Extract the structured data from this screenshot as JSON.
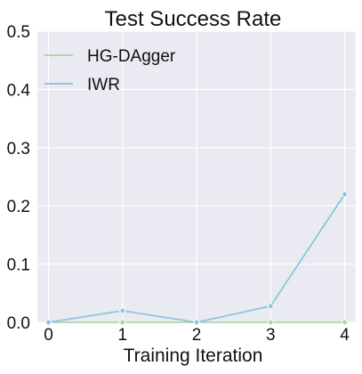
{
  "chart_data": {
    "type": "line",
    "title": "Test Success Rate",
    "xlabel": "Training Iteration",
    "ylabel": "",
    "x": [
      0,
      1,
      2,
      3,
      4
    ],
    "x_tick_labels": [
      "0",
      "1",
      "2",
      "3",
      "4"
    ],
    "xlim": [
      -0.15,
      4.15
    ],
    "ylim": [
      0.0,
      0.5
    ],
    "y_ticks": [
      0.0,
      0.1,
      0.2,
      0.3,
      0.4,
      0.5
    ],
    "y_tick_labels": [
      "0.0",
      "0.1",
      "0.2",
      "0.3",
      "0.4",
      "0.5"
    ],
    "grid": true,
    "legend_position": "upper-left",
    "background_color": "#eaeaf2",
    "series": [
      {
        "name": "HG-DAgger",
        "color": "#b5d3a6",
        "values": [
          0.0,
          0.0,
          0.0,
          0.0,
          0.0
        ]
      },
      {
        "name": "IWR",
        "color": "#8ec5de",
        "values": [
          0.0,
          0.02,
          0.0,
          0.028,
          0.22
        ]
      }
    ]
  }
}
